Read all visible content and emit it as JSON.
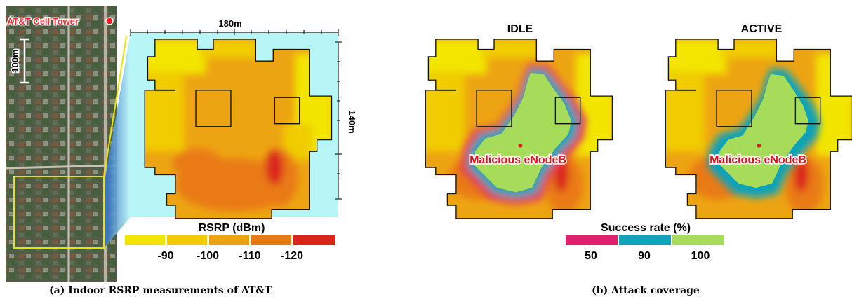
{
  "panel_a": {
    "tower_label": "AT&T Cell Tower",
    "scale_vertical": "100m",
    "width_label": "180m",
    "height_label": "140m",
    "legend_title": "RSRP (dBm)",
    "legend_ticks": [
      "-90",
      "-100",
      "-110",
      "-120"
    ],
    "legend_colors": [
      "#f2e600",
      "#f0cc00",
      "#eda412",
      "#e97a12",
      "#d9261c"
    ],
    "caption": "(a) Indoor RSRP measurements of AT&T"
  },
  "panel_b": {
    "idle_title": "IDLE",
    "active_title": "ACTIVE",
    "enodeb_label": "Malicious eNodeB",
    "legend_title": "Success rate (%)",
    "legend_ticks": [
      "50",
      "90",
      "100"
    ],
    "legend_colors": [
      "#e0226e",
      "#11a3b8",
      "#a6dc5a"
    ],
    "caption": "(b) Attack coverage"
  }
}
